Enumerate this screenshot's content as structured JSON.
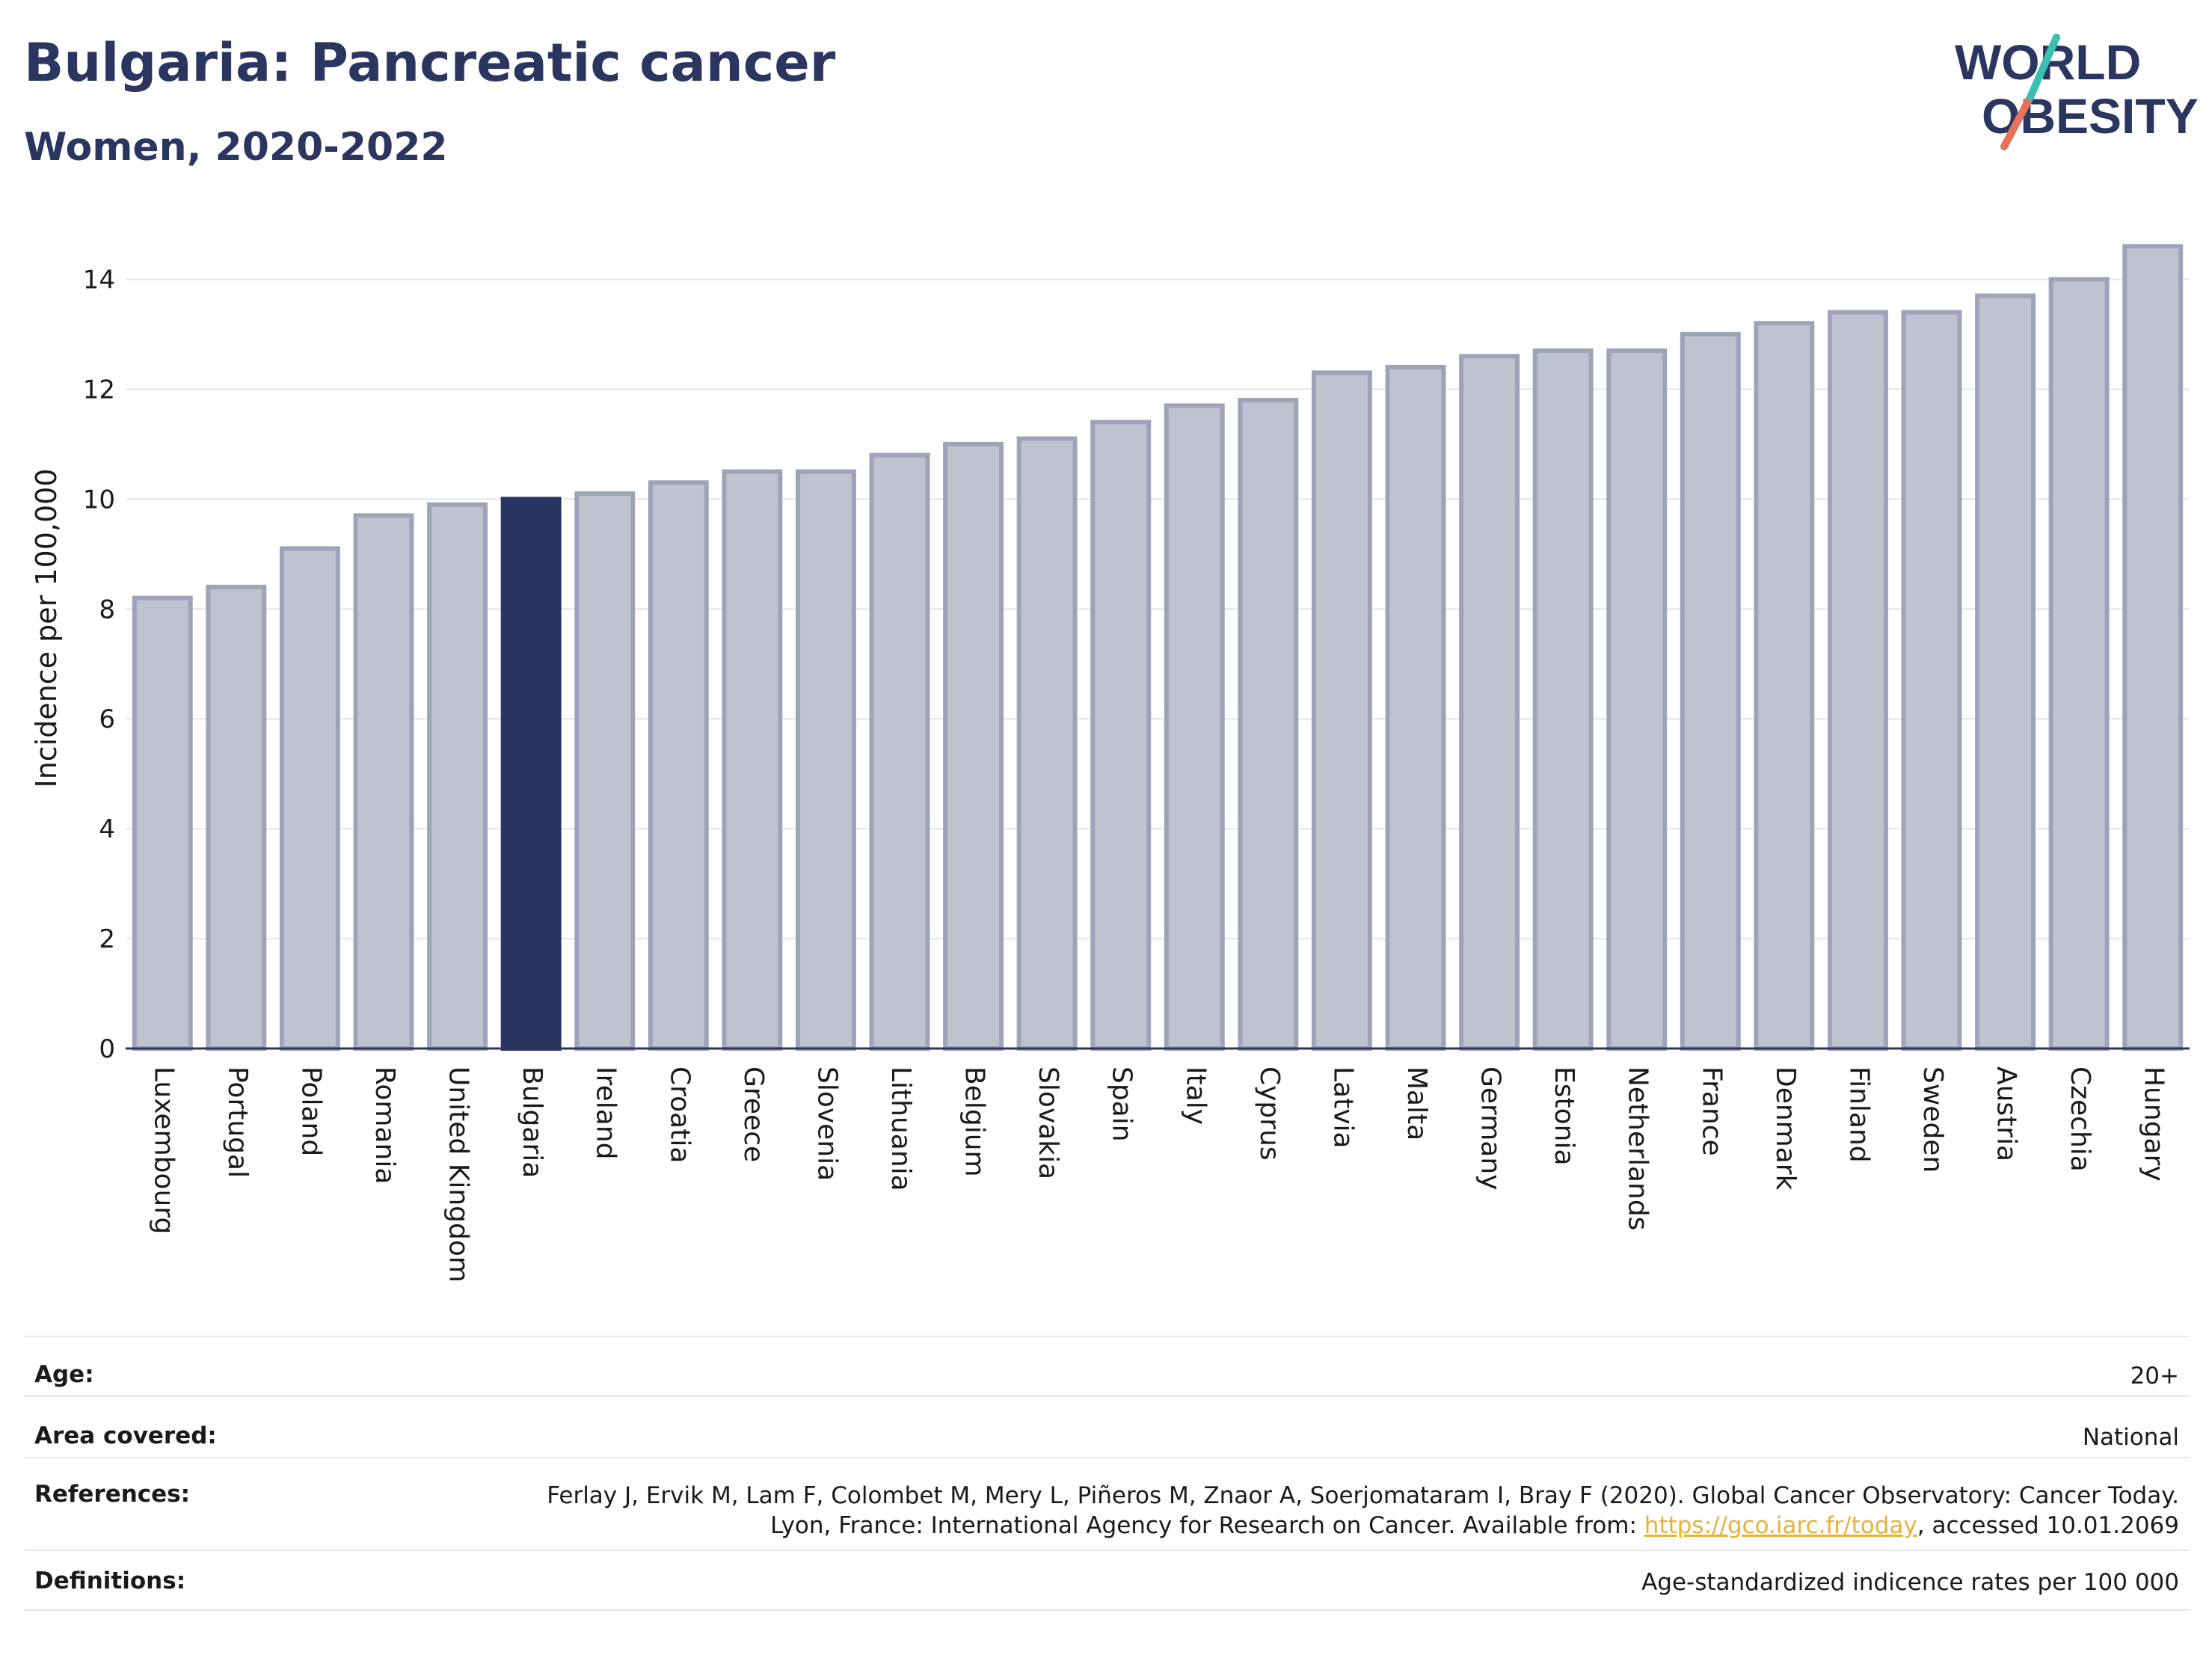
{
  "header": {
    "title": "Bulgaria: Pancreatic cancer",
    "subtitle": "Women, 2020-2022"
  },
  "logo": {
    "line1": "WORLD",
    "line2": "OBESITY",
    "colors": {
      "text": "#2a3560",
      "slash_teal": "#3bbfb0",
      "slash_coral": "#e8715e"
    }
  },
  "chart_data": {
    "type": "bar",
    "title": "",
    "xlabel": "",
    "ylabel": "Incidence per 100,000",
    "ylim": [
      0,
      15
    ],
    "yticks": [
      0,
      2,
      4,
      6,
      8,
      10,
      12,
      14
    ],
    "grid": true,
    "highlight": "Bulgaria",
    "colors": {
      "bar": "#bfc2cf",
      "bar_edge": "#9ea3b8",
      "highlight": "#2a3560"
    },
    "categories": [
      "Luxembourg",
      "Portugal",
      "Poland",
      "Romania",
      "United Kingdom",
      "Bulgaria",
      "Ireland",
      "Croatia",
      "Greece",
      "Slovenia",
      "Lithuania",
      "Belgium",
      "Slovakia",
      "Spain",
      "Italy",
      "Cyprus",
      "Latvia",
      "Malta",
      "Germany",
      "Estonia",
      "Netherlands",
      "France",
      "Denmark",
      "Finland",
      "Sweden",
      "Austria",
      "Czechia",
      "Hungary"
    ],
    "values": [
      8.2,
      8.4,
      9.1,
      9.7,
      9.9,
      10.0,
      10.1,
      10.3,
      10.5,
      10.5,
      10.8,
      11.0,
      11.1,
      11.4,
      11.7,
      11.8,
      12.3,
      12.4,
      12.6,
      12.7,
      12.7,
      13.0,
      13.2,
      13.4,
      13.4,
      13.7,
      14.0,
      14.6
    ]
  },
  "meta": {
    "age": {
      "label": "Age:",
      "value": "20+"
    },
    "area": {
      "label": "Area covered:",
      "value": "National"
    },
    "references": {
      "label": "References:",
      "text_before": "Ferlay J, Ervik M, Lam F, Colombet M, Mery L, Piñeros M, Znaor A, Soerjomataram I, Bray F (2020). Global Cancer Observatory: Cancer Today. Lyon, France: International Agency for Research on Cancer. Available from: ",
      "link": "https://gco.iarc.fr/today",
      "text_after": ", accessed 10.01.2069"
    },
    "definitions": {
      "label": "Definitions:",
      "value": "Age-standardized indicence rates per 100 000"
    }
  }
}
